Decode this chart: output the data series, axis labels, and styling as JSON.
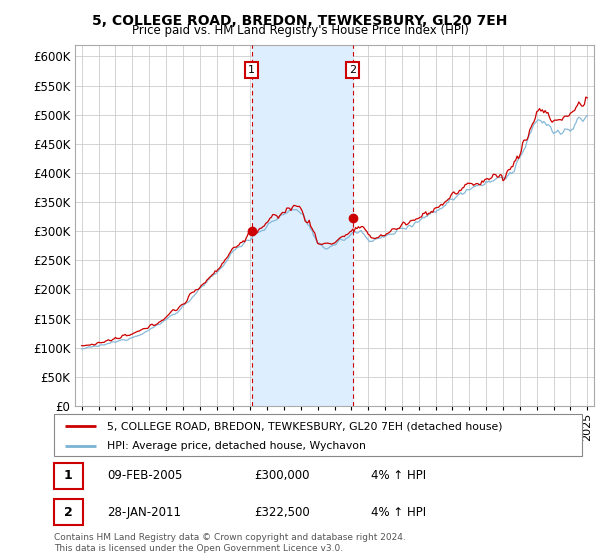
{
  "title": "5, COLLEGE ROAD, BREDON, TEWKESBURY, GL20 7EH",
  "subtitle": "Price paid vs. HM Land Registry's House Price Index (HPI)",
  "legend_line1": "5, COLLEGE ROAD, BREDON, TEWKESBURY, GL20 7EH (detached house)",
  "legend_line2": "HPI: Average price, detached house, Wychavon",
  "annotation1_date": "09-FEB-2005",
  "annotation1_price": "£300,000",
  "annotation1_hpi": "4% ↑ HPI",
  "annotation2_date": "28-JAN-2011",
  "annotation2_price": "£322,500",
  "annotation2_hpi": "4% ↑ HPI",
  "footer": "Contains HM Land Registry data © Crown copyright and database right 2024.\nThis data is licensed under the Open Government Licence v3.0.",
  "hpi_color": "#7ab3d4",
  "price_color": "#cc0000",
  "marker1_x_year": 2005.08,
  "marker1_y": 300000,
  "marker2_x_year": 2011.07,
  "marker2_y": 322500,
  "vline1_x": 2005.08,
  "vline2_x": 2011.07,
  "shade_x1": 2005.08,
  "shade_x2": 2011.07,
  "shade_color": "#ddeeff",
  "ylim": [
    0,
    620000
  ],
  "xlim_start": 1994.6,
  "xlim_end": 2025.4,
  "yticks": [
    0,
    50000,
    100000,
    150000,
    200000,
    250000,
    300000,
    350000,
    400000,
    450000,
    500000,
    550000,
    600000
  ],
  "xtick_years": [
    1995,
    1996,
    1997,
    1998,
    1999,
    2000,
    2001,
    2002,
    2003,
    2004,
    2005,
    2006,
    2007,
    2008,
    2009,
    2010,
    2011,
    2012,
    2013,
    2014,
    2015,
    2016,
    2017,
    2018,
    2019,
    2020,
    2021,
    2022,
    2023,
    2024,
    2025
  ],
  "background_color": "#ffffff",
  "grid_color": "#cccccc"
}
